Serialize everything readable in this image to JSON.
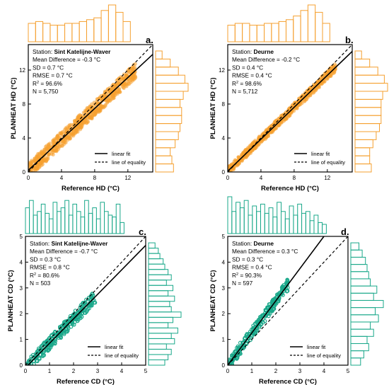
{
  "chart_data": [
    {
      "panel_label": "a.",
      "type": "scatter",
      "xlabel": "Reference HD (°C)",
      "ylabel": "PLANHEAT HD (°C)",
      "xlim": [
        0,
        15
      ],
      "ylim": [
        0,
        15
      ],
      "x_ticks": [
        0,
        4,
        8,
        12
      ],
      "y_ticks": [
        0,
        4,
        8,
        12
      ],
      "color": "#f5a030",
      "stats": {
        "station_prefix": "Station: ",
        "station": "Sint Katelijne-Waver",
        "mean_difference": "Mean Difference = -0.3 °C",
        "sd": "SD = 0.7 °C",
        "rmse": "RMSE = 0.7 °C",
        "r2_prefix": "R",
        "r2_sup": "2",
        "r2_value": " = 96.6%",
        "n": "N = 5,750"
      },
      "legend": [
        "linear fit",
        "line of equality"
      ],
      "linear_fit": {
        "slope": 0.91,
        "intercept": 0.2
      },
      "equality_line": {
        "slope": 1,
        "intercept": 0
      },
      "point_cloud": {
        "x_min": 0,
        "x_max": 13,
        "spread": 1.8
      },
      "top_histogram": [
        0.5,
        0.55,
        0.5,
        0.45,
        0.45,
        0.5,
        0.5,
        0.55,
        0.6,
        0.65,
        0.85,
        1.0,
        0.8,
        0.55
      ],
      "right_histogram": [
        0.55,
        0.5,
        0.45,
        0.6,
        0.7,
        0.75,
        0.8,
        0.8,
        0.75,
        0.85,
        1.0,
        0.9,
        0.7,
        0.45,
        0.2
      ]
    },
    {
      "panel_label": "b.",
      "type": "scatter",
      "xlabel": "Reference HD (°C)",
      "ylabel": "PLANHEAT HD (°C)",
      "xlim": [
        0,
        15
      ],
      "ylim": [
        0,
        15
      ],
      "x_ticks": [
        0,
        4,
        8,
        12
      ],
      "y_ticks": [
        0,
        4,
        8,
        12
      ],
      "color": "#f5a030",
      "stats": {
        "station_prefix": "Station: ",
        "station": "Deurne",
        "mean_difference": "Mean Difference = -0.2 °C",
        "sd": "SD = 0.4 °C",
        "rmse": "RMSE = 0.4 °C",
        "r2_prefix": "R",
        "r2_sup": "2",
        "r2_value": " = 98.6%",
        "n": "N = 5,712"
      },
      "legend": [
        "linear fit",
        "line of equality"
      ],
      "linear_fit": {
        "slope": 0.94,
        "intercept": 0.1
      },
      "equality_line": {
        "slope": 1,
        "intercept": 0
      },
      "point_cloud": {
        "x_min": 0,
        "x_max": 13,
        "spread": 1.0
      },
      "top_histogram": [
        0.45,
        0.5,
        0.5,
        0.45,
        0.45,
        0.5,
        0.5,
        0.55,
        0.6,
        0.7,
        0.85,
        1.0,
        0.8,
        0.5
      ],
      "right_histogram": [
        0.5,
        0.45,
        0.45,
        0.55,
        0.65,
        0.75,
        0.8,
        0.8,
        0.8,
        0.85,
        1.0,
        0.9,
        0.7,
        0.45,
        0.2
      ]
    },
    {
      "panel_label": "c.",
      "type": "scatter",
      "xlabel": "Reference CD (°C)",
      "ylabel": "PLANHEAT CD (°C)",
      "xlim": [
        0,
        5
      ],
      "ylim": [
        0,
        5
      ],
      "x_ticks": [
        0,
        1,
        2,
        3,
        4,
        5
      ],
      "y_ticks": [
        0,
        1,
        2,
        3,
        4,
        5
      ],
      "color": "#1aa88a",
      "stats": {
        "station_prefix": "Station: ",
        "station": "Sint Katelijne-Waver",
        "mean_difference": "Mean Difference = -0.7 °C",
        "sd": "SD = 0.3 °C",
        "rmse": "RMSE = 0.8 °C",
        "r2_prefix": "R",
        "r2_sup": "2",
        "r2_value": " = 80.6%",
        "n": "N = 503"
      },
      "legend": [
        "linear fit",
        "line of equality"
      ],
      "linear_fit": {
        "slope": 0.95,
        "intercept": -0.1
      },
      "equality_line": {
        "slope": 1,
        "intercept": 0
      },
      "point_cloud": {
        "x_min": 0,
        "x_max": 2.9,
        "spread": 0.5
      },
      "top_histogram": [
        0.7,
        0.9,
        0.5,
        0.6,
        0.8,
        0.55,
        0.4,
        0.85,
        0.6,
        0.7,
        0.9,
        0.5,
        0.8,
        0.6,
        0.45,
        0.9,
        0.55,
        0.7,
        0.4,
        0.85,
        0.6,
        0.5,
        0.45,
        0.8,
        0.3
      ],
      "right_histogram": [
        0.5,
        0.6,
        0.7,
        0.55,
        0.8,
        0.7,
        0.9,
        0.6,
        0.75,
        1.0,
        0.7,
        0.65,
        0.8,
        0.6,
        0.75,
        0.55,
        0.7,
        0.6,
        0.5,
        0.45,
        0.35,
        0.3,
        0.2
      ]
    },
    {
      "panel_label": "d.",
      "type": "scatter",
      "xlabel": "Reference CD (°C)",
      "ylabel": "PLANHEAT CD (°C)",
      "xlim": [
        0,
        5
      ],
      "ylim": [
        0,
        5
      ],
      "x_ticks": [
        0,
        1,
        2,
        3,
        4,
        5
      ],
      "y_ticks": [
        0,
        1,
        2,
        3,
        4,
        5
      ],
      "color": "#1aa88a",
      "stats": {
        "station_prefix": "Station: ",
        "station": "Deurne",
        "mean_difference": "Mean Difference = 0.3 °C",
        "sd": "SD = 0.3 °C",
        "rmse": "RMSE = 0.4 °C",
        "r2_prefix": "R",
        "r2_sup": "2",
        "r2_value": " = 90.3%",
        "n": "N = 597"
      },
      "legend": [
        "linear fit",
        "line of equality"
      ],
      "linear_fit": {
        "slope": 1.25,
        "intercept": 0.0
      },
      "equality_line": {
        "slope": 1,
        "intercept": 0
      },
      "point_cloud": {
        "x_min": 0,
        "x_max": 2.5,
        "spread": 0.45
      },
      "top_histogram": [
        1.0,
        0.6,
        0.85,
        0.7,
        0.9,
        0.5,
        0.75,
        0.6,
        0.8,
        0.55,
        0.7,
        0.45,
        0.85,
        0.6,
        0.4,
        0.75,
        0.5,
        0.8,
        0.55,
        0.6,
        0.35,
        0.5,
        0.3,
        0.25
      ],
      "right_histogram": [
        0.3,
        0.4,
        0.55,
        0.5,
        0.7,
        0.6,
        0.85,
        0.75,
        1.0,
        0.7,
        0.8,
        0.6,
        0.55,
        0.5,
        0.45,
        0.35,
        0.25
      ]
    }
  ]
}
